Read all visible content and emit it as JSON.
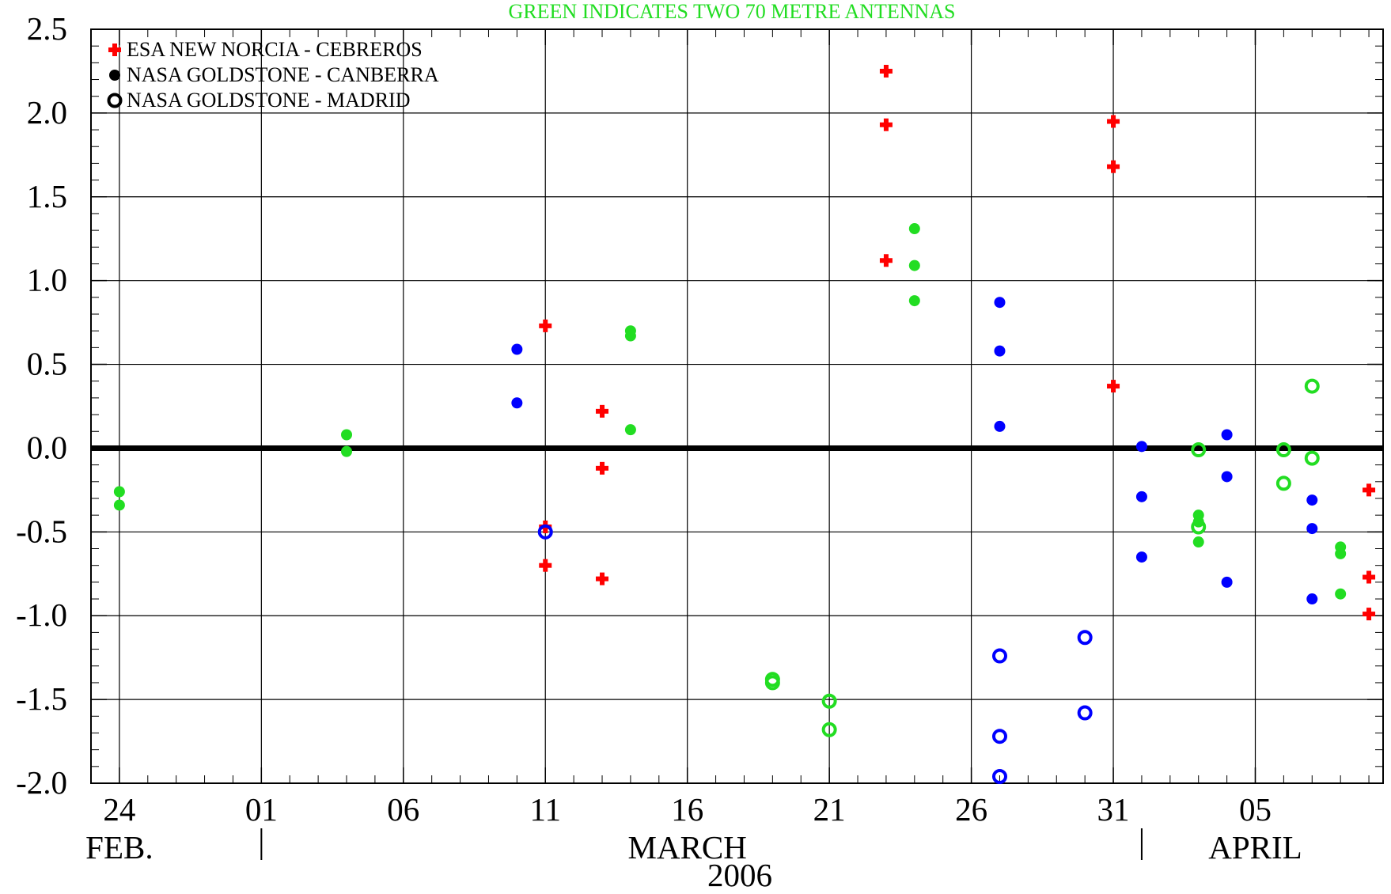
{
  "chart_data": {
    "type": "scatter",
    "title": "GREEN INDICATES TWO 70 METRE ANTENNAS",
    "title_color": "#22dd22",
    "xlabel": "2006",
    "x_range": [
      "2006-02-23",
      "2006-04-09"
    ],
    "ylim": [
      -2.0,
      2.5
    ],
    "grid": true,
    "legend_position": "top-left",
    "x_ticks": [
      {
        "date": "2006-02-24",
        "label": "24"
      },
      {
        "date": "2006-03-01",
        "label": "01"
      },
      {
        "date": "2006-03-06",
        "label": "06"
      },
      {
        "date": "2006-03-11",
        "label": "11"
      },
      {
        "date": "2006-03-16",
        "label": "16"
      },
      {
        "date": "2006-03-21",
        "label": "21"
      },
      {
        "date": "2006-03-26",
        "label": "26"
      },
      {
        "date": "2006-03-31",
        "label": "31"
      },
      {
        "date": "2006-04-05",
        "label": "05"
      }
    ],
    "y_ticks": [
      {
        "value": 2.5,
        "label": "2.5"
      },
      {
        "value": 2.0,
        "label": "2.0"
      },
      {
        "value": 1.5,
        "label": "1.5"
      },
      {
        "value": 1.0,
        "label": "1.0"
      },
      {
        "value": 0.5,
        "label": "0.5"
      },
      {
        "value": 0.0,
        "label": "0.0"
      },
      {
        "value": -0.5,
        "label": "-0.5"
      },
      {
        "value": -1.0,
        "label": "-1.0"
      },
      {
        "value": -1.5,
        "label": "-1.5"
      },
      {
        "value": -2.0,
        "label": "-2.0"
      }
    ],
    "months": [
      {
        "label": "FEB.",
        "date": "2006-02-24"
      },
      {
        "label": "MARCH",
        "date": "2006-03-16"
      },
      {
        "label": "APRIL",
        "date": "2006-04-05"
      }
    ],
    "month_separators": [
      "2006-03-01",
      "2006-04-01"
    ],
    "zero_line": 0.0,
    "colors": {
      "esa": "#ff0000",
      "nasa": "#0000ff",
      "green": "#22dd22",
      "axis": "#000000"
    },
    "legend": [
      {
        "label": "ESA NEW NORCIA - CEBREROS",
        "marker": "plus",
        "color": "#ff0000"
      },
      {
        "label": "NASA GOLDSTONE - CANBERRA",
        "marker": "dot",
        "color": "#000000"
      },
      {
        "label": "NASA GOLDSTONE - MADRID",
        "marker": "ring",
        "color": "#000000"
      }
    ],
    "series": [
      {
        "name": "ESA NEW NORCIA - CEBREROS",
        "marker": "plus",
        "points": [
          {
            "x": "2006-03-11",
            "y": 0.73,
            "color": "#ff0000"
          },
          {
            "x": "2006-03-11",
            "y": -0.47,
            "color": "#ff0000"
          },
          {
            "x": "2006-03-11",
            "y": -0.7,
            "color": "#ff0000"
          },
          {
            "x": "2006-03-13",
            "y": 0.22,
            "color": "#ff0000"
          },
          {
            "x": "2006-03-13",
            "y": -0.12,
            "color": "#ff0000"
          },
          {
            "x": "2006-03-13",
            "y": -0.78,
            "color": "#ff0000"
          },
          {
            "x": "2006-03-23",
            "y": 2.25,
            "color": "#ff0000"
          },
          {
            "x": "2006-03-23",
            "y": 1.93,
            "color": "#ff0000"
          },
          {
            "x": "2006-03-23",
            "y": 1.12,
            "color": "#ff0000"
          },
          {
            "x": "2006-03-31",
            "y": 1.95,
            "color": "#ff0000"
          },
          {
            "x": "2006-03-31",
            "y": 1.68,
            "color": "#ff0000"
          },
          {
            "x": "2006-03-31",
            "y": 0.37,
            "color": "#ff0000"
          },
          {
            "x": "2006-04-09",
            "y": -0.25,
            "color": "#ff0000"
          },
          {
            "x": "2006-04-09",
            "y": -0.77,
            "color": "#ff0000"
          },
          {
            "x": "2006-04-09",
            "y": -0.99,
            "color": "#ff0000"
          }
        ]
      },
      {
        "name": "NASA GOLDSTONE - CANBERRA",
        "marker": "dot",
        "points": [
          {
            "x": "2006-02-24",
            "y": -0.26,
            "color": "#22dd22"
          },
          {
            "x": "2006-02-24",
            "y": -0.34,
            "color": "#22dd22"
          },
          {
            "x": "2006-03-04",
            "y": 0.08,
            "color": "#22dd22"
          },
          {
            "x": "2006-03-04",
            "y": -0.02,
            "color": "#22dd22"
          },
          {
            "x": "2006-03-10",
            "y": 0.59,
            "color": "#0000ff"
          },
          {
            "x": "2006-03-10",
            "y": 0.27,
            "color": "#0000ff"
          },
          {
            "x": "2006-03-14",
            "y": 0.7,
            "color": "#22dd22"
          },
          {
            "x": "2006-03-14",
            "y": 0.67,
            "color": "#22dd22"
          },
          {
            "x": "2006-03-14",
            "y": 0.11,
            "color": "#22dd22"
          },
          {
            "x": "2006-03-24",
            "y": 1.31,
            "color": "#22dd22"
          },
          {
            "x": "2006-03-24",
            "y": 1.09,
            "color": "#22dd22"
          },
          {
            "x": "2006-03-24",
            "y": 0.88,
            "color": "#22dd22"
          },
          {
            "x": "2006-03-27",
            "y": 0.87,
            "color": "#0000ff"
          },
          {
            "x": "2006-03-27",
            "y": 0.58,
            "color": "#0000ff"
          },
          {
            "x": "2006-03-27",
            "y": 0.13,
            "color": "#0000ff"
          },
          {
            "x": "2006-04-01",
            "y": 0.01,
            "color": "#0000ff"
          },
          {
            "x": "2006-04-01",
            "y": -0.29,
            "color": "#0000ff"
          },
          {
            "x": "2006-04-01",
            "y": -0.65,
            "color": "#0000ff"
          },
          {
            "x": "2006-04-03",
            "y": -0.4,
            "color": "#22dd22"
          },
          {
            "x": "2006-04-03",
            "y": -0.44,
            "color": "#22dd22"
          },
          {
            "x": "2006-04-03",
            "y": -0.56,
            "color": "#22dd22"
          },
          {
            "x": "2006-04-04",
            "y": 0.08,
            "color": "#0000ff"
          },
          {
            "x": "2006-04-04",
            "y": -0.17,
            "color": "#0000ff"
          },
          {
            "x": "2006-04-04",
            "y": -0.8,
            "color": "#0000ff"
          },
          {
            "x": "2006-04-07",
            "y": -0.31,
            "color": "#0000ff"
          },
          {
            "x": "2006-04-07",
            "y": -0.48,
            "color": "#0000ff"
          },
          {
            "x": "2006-04-07",
            "y": -0.9,
            "color": "#0000ff"
          },
          {
            "x": "2006-04-08",
            "y": -0.59,
            "color": "#22dd22"
          },
          {
            "x": "2006-04-08",
            "y": -0.63,
            "color": "#22dd22"
          },
          {
            "x": "2006-04-08",
            "y": -0.87,
            "color": "#22dd22"
          }
        ]
      },
      {
        "name": "NASA GOLDSTONE - MADRID",
        "marker": "ring",
        "points": [
          {
            "x": "2006-03-11",
            "y": -0.5,
            "color": "#0000ff"
          },
          {
            "x": "2006-03-19",
            "y": -1.38,
            "color": "#22dd22"
          },
          {
            "x": "2006-03-19",
            "y": -1.4,
            "color": "#22dd22"
          },
          {
            "x": "2006-03-21",
            "y": -1.51,
            "color": "#22dd22"
          },
          {
            "x": "2006-03-21",
            "y": -1.68,
            "color": "#22dd22"
          },
          {
            "x": "2006-03-27",
            "y": -1.24,
            "color": "#0000ff"
          },
          {
            "x": "2006-03-27",
            "y": -1.72,
            "color": "#0000ff"
          },
          {
            "x": "2006-03-27",
            "y": -1.96,
            "color": "#0000ff"
          },
          {
            "x": "2006-03-30",
            "y": -1.13,
            "color": "#0000ff"
          },
          {
            "x": "2006-03-30",
            "y": -1.58,
            "color": "#0000ff"
          },
          {
            "x": "2006-04-03",
            "y": -0.01,
            "color": "#22dd22"
          },
          {
            "x": "2006-04-03",
            "y": -0.47,
            "color": "#22dd22"
          },
          {
            "x": "2006-04-06",
            "y": -0.01,
            "color": "#22dd22"
          },
          {
            "x": "2006-04-06",
            "y": -0.21,
            "color": "#22dd22"
          },
          {
            "x": "2006-04-07",
            "y": 0.37,
            "color": "#22dd22"
          },
          {
            "x": "2006-04-07",
            "y": -0.06,
            "color": "#22dd22"
          }
        ]
      }
    ]
  }
}
